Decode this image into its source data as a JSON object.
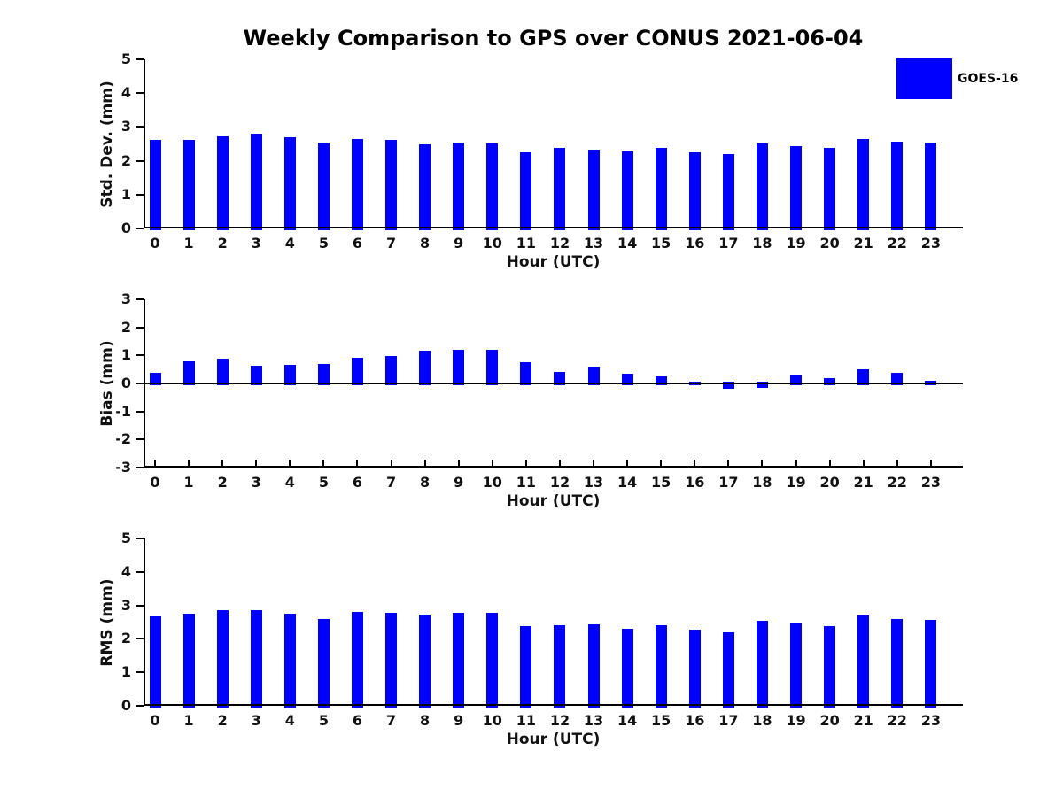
{
  "title": "Weekly Comparison to GPS over CONUS 2021-06-04",
  "legend": {
    "label": "GOES-16",
    "color": "#0000FF"
  },
  "colors": {
    "bar": "#0000FF",
    "axis": "#000000",
    "text": "#111111"
  },
  "chart_data": [
    {
      "id": "stddev",
      "type": "bar",
      "title": "",
      "ylabel": "Std. Dev. (mm)",
      "xlabel": "Hour (UTC)",
      "ylim": [
        0,
        5
      ],
      "yticks": [
        0,
        1,
        2,
        3,
        4,
        5
      ],
      "grid": false,
      "legend_position": "upper-right-outside",
      "categories": [
        "0",
        "1",
        "2",
        "3",
        "4",
        "5",
        "6",
        "7",
        "8",
        "9",
        "10",
        "11",
        "12",
        "13",
        "14",
        "15",
        "16",
        "17",
        "18",
        "19",
        "20",
        "21",
        "22",
        "23"
      ],
      "series_name": "GOES-16",
      "values": [
        2.63,
        2.63,
        2.72,
        2.8,
        2.7,
        2.53,
        2.64,
        2.62,
        2.48,
        2.53,
        2.51,
        2.24,
        2.38,
        2.34,
        2.27,
        2.37,
        2.25,
        2.19,
        2.51,
        2.43,
        2.37,
        2.64,
        2.57,
        2.53
      ]
    },
    {
      "id": "bias",
      "type": "bar",
      "title": "",
      "ylabel": "Bias (mm)",
      "xlabel": "Hour (UTC)",
      "ylim": [
        -3,
        3
      ],
      "yticks": [
        -3,
        -2,
        -1,
        0,
        1,
        2,
        3
      ],
      "grid": false,
      "categories": [
        "0",
        "1",
        "2",
        "3",
        "4",
        "5",
        "6",
        "7",
        "8",
        "9",
        "10",
        "11",
        "12",
        "13",
        "14",
        "15",
        "16",
        "17",
        "18",
        "19",
        "20",
        "21",
        "22",
        "23"
      ],
      "series_name": "GOES-16",
      "values": [
        0.37,
        0.8,
        0.87,
        0.62,
        0.65,
        0.68,
        0.93,
        0.97,
        1.17,
        1.21,
        1.2,
        0.76,
        0.4,
        0.61,
        0.36,
        0.25,
        0.06,
        -0.19,
        -0.15,
        0.3,
        0.18,
        0.51,
        0.38,
        0.11
      ]
    },
    {
      "id": "rms",
      "type": "bar",
      "title": "",
      "ylabel": "RMS (mm)",
      "xlabel": "Hour (UTC)",
      "ylim": [
        0,
        5
      ],
      "yticks": [
        0,
        1,
        2,
        3,
        4,
        5
      ],
      "grid": false,
      "categories": [
        "0",
        "1",
        "2",
        "3",
        "4",
        "5",
        "6",
        "7",
        "8",
        "9",
        "10",
        "11",
        "12",
        "13",
        "14",
        "15",
        "16",
        "17",
        "18",
        "19",
        "20",
        "21",
        "22",
        "23"
      ],
      "series_name": "GOES-16",
      "values": [
        2.67,
        2.76,
        2.85,
        2.85,
        2.76,
        2.6,
        2.8,
        2.78,
        2.72,
        2.78,
        2.78,
        2.37,
        2.4,
        2.43,
        2.29,
        2.41,
        2.27,
        2.2,
        2.54,
        2.46,
        2.37,
        2.7,
        2.59,
        2.57
      ]
    }
  ]
}
